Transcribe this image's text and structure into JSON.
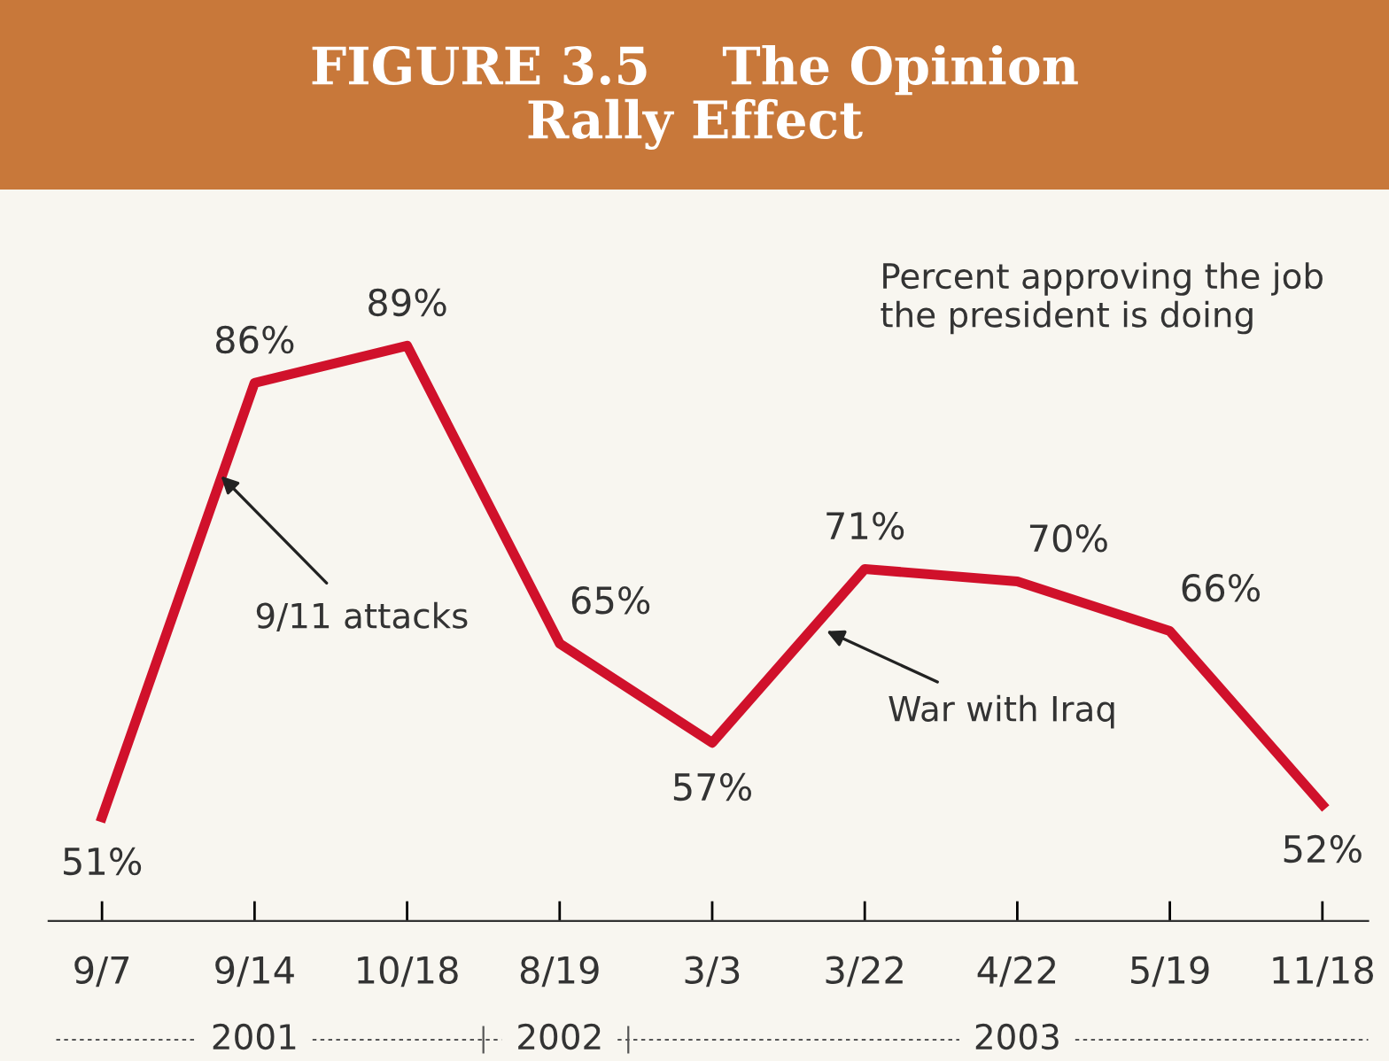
{
  "chart_data": {
    "type": "line",
    "title": "FIGURE 3.5    The Opinion\nRally Effect",
    "categories": [
      "9/7",
      "9/14",
      "10/18",
      "8/19",
      "3/3",
      "3/22",
      "4/22",
      "5/19",
      "11/18"
    ],
    "series": [
      {
        "color": "#d0112b",
        "values": [
          51,
          86,
          89,
          65,
          57,
          71,
          70,
          66,
          52
        ],
        "value_labels": [
          "51%",
          "86%",
          "89%",
          "65%",
          "57%",
          "71%",
          "70%",
          "66%",
          "52%"
        ]
      }
    ],
    "tick_labels": "x",
    "grid": false,
    "legend": false,
    "marker": "none",
    "line_style": "solid",
    "annotations": [
      "Percent approving the job\nthe president is doing",
      "9/11 attacks",
      "War with Iraq",
      "2001",
      "2002",
      "2003"
    ]
  }
}
